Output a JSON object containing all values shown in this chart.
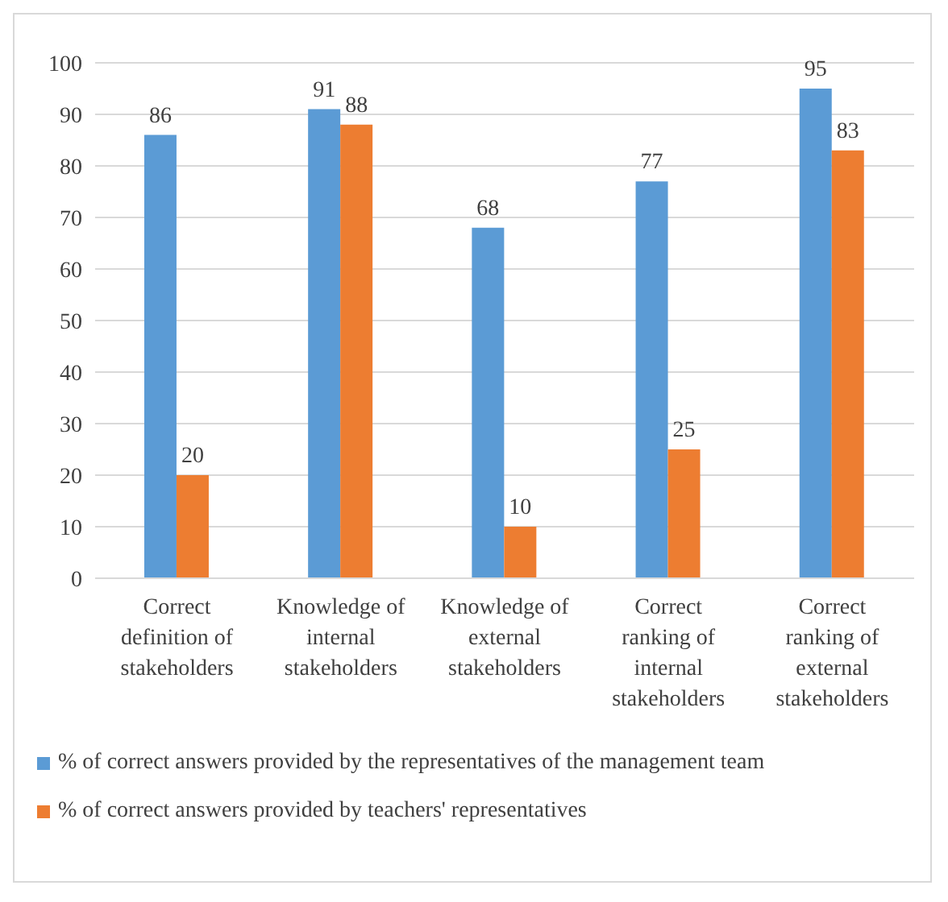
{
  "chart_data": {
    "type": "bar",
    "categories": [
      "Correct definition of stakeholders",
      "Knowledge of internal stakeholders",
      "Knowledge of external stakeholders",
      "Correct ranking of internal stakeholders",
      "Correct ranking of external stakeholders"
    ],
    "series": [
      {
        "name": "% of correct answers provided by the representatives of the management team",
        "color": "#5b9bd5",
        "values": [
          86,
          91,
          68,
          77,
          95
        ]
      },
      {
        "name": "% of correct answers provided by teachers' representatives",
        "color": "#ed7d31",
        "values": [
          20,
          88,
          10,
          25,
          83
        ]
      }
    ],
    "ylim": [
      0,
      100
    ],
    "yticks": [
      0,
      10,
      20,
      30,
      40,
      50,
      60,
      70,
      80,
      90,
      100
    ],
    "grid": "y",
    "legend": "bottom",
    "data_labels": true
  }
}
